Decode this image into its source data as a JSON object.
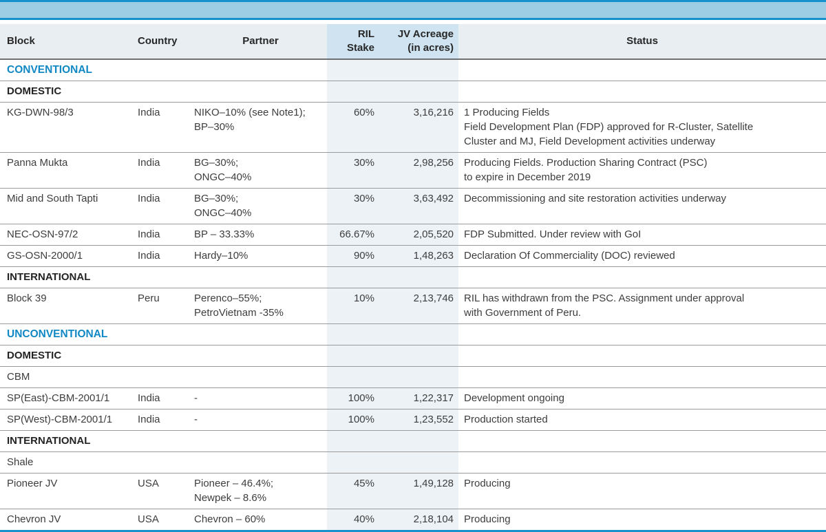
{
  "page": {
    "accent_blue": "#1791cb",
    "band_blue": "#9ccde5",
    "category_blue": "#1088c4",
    "header_bg": "#e9eef3",
    "highlight_header_bg": "#cfe3f0",
    "highlight_body_bg": "#edf2f6"
  },
  "table": {
    "columns": [
      {
        "label": "Block"
      },
      {
        "label": "Country"
      },
      {
        "label": "Partner"
      },
      {
        "line1": "RIL",
        "line2": "Stake"
      },
      {
        "line1": "JV Acreage",
        "line2": "(in acres)"
      },
      {
        "label": "Status"
      }
    ],
    "rows": [
      {
        "type": "category",
        "label": "CONVENTIONAL"
      },
      {
        "type": "group",
        "label": "DOMESTIC"
      },
      {
        "type": "data",
        "block": "KG-DWN-98/3",
        "country": "India",
        "partner": [
          "NIKO–10% (see Note1);",
          "BP–30%"
        ],
        "stake": "60%",
        "acreage": "3,16,216",
        "status": [
          "1 Producing Fields",
          "Field Development Plan (FDP) approved for R-Cluster, Satellite",
          "Cluster and MJ, Field Development activities underway"
        ]
      },
      {
        "type": "data",
        "block": "Panna Mukta",
        "country": "India",
        "partner": [
          "BG–30%;",
          "ONGC–40%"
        ],
        "stake": "30%",
        "acreage": "2,98,256",
        "status": [
          "Producing Fields. Production Sharing Contract (PSC)",
          "to expire in December 2019"
        ]
      },
      {
        "type": "data",
        "block": "Mid and South Tapti",
        "country": "India",
        "partner": [
          "BG–30%;",
          "ONGC–40%"
        ],
        "stake": "30%",
        "acreage": "3,63,492",
        "status": [
          "Decommissioning and site restoration activities underway"
        ]
      },
      {
        "type": "data",
        "block": "NEC-OSN-97/2",
        "country": "India",
        "partner": [
          "BP – 33.33%"
        ],
        "stake": "66.67%",
        "acreage": "2,05,520",
        "status": [
          "FDP Submitted. Under review with GoI"
        ]
      },
      {
        "type": "data",
        "block": "GS-OSN-2000/1",
        "country": "India",
        "partner": [
          "Hardy–10%"
        ],
        "stake": "90%",
        "acreage": "1,48,263",
        "status": [
          "Declaration Of Commerciality (DOC) reviewed"
        ]
      },
      {
        "type": "group",
        "label": "INTERNATIONAL"
      },
      {
        "type": "data",
        "block": "Block 39",
        "country": "Peru",
        "partner": [
          "Perenco–55%;",
          "PetroVietnam -35%"
        ],
        "stake": "10%",
        "acreage": "2,13,746",
        "status": [
          "RIL has withdrawn from the PSC. Assignment under approval",
          "with Government of Peru."
        ]
      },
      {
        "type": "category",
        "label": "UNCONVENTIONAL"
      },
      {
        "type": "group",
        "label": "DOMESTIC"
      },
      {
        "type": "label",
        "label": "CBM"
      },
      {
        "type": "data",
        "block": "SP(East)-CBM-2001/1",
        "country": "India",
        "partner": [
          "-"
        ],
        "stake": "100%",
        "acreage": "1,22,317",
        "status": [
          "Development ongoing"
        ]
      },
      {
        "type": "data",
        "block": "SP(West)-CBM-2001/1",
        "country": "India",
        "partner": [
          "-"
        ],
        "stake": "100%",
        "acreage": "1,23,552",
        "status": [
          "Production started"
        ]
      },
      {
        "type": "group",
        "label": "INTERNATIONAL"
      },
      {
        "type": "label",
        "label": "Shale"
      },
      {
        "type": "data",
        "block": "Pioneer JV",
        "country": "USA",
        "partner": [
          "Pioneer – 46.4%;",
          "Newpek – 8.6%"
        ],
        "stake": "45%",
        "acreage": "1,49,128",
        "status": [
          "Producing"
        ]
      },
      {
        "type": "data",
        "block": "Chevron JV",
        "country": "USA",
        "partner": [
          "Chevron – 60%"
        ],
        "stake": "40%",
        "acreage": "2,18,104",
        "status": [
          "Producing"
        ]
      }
    ]
  }
}
